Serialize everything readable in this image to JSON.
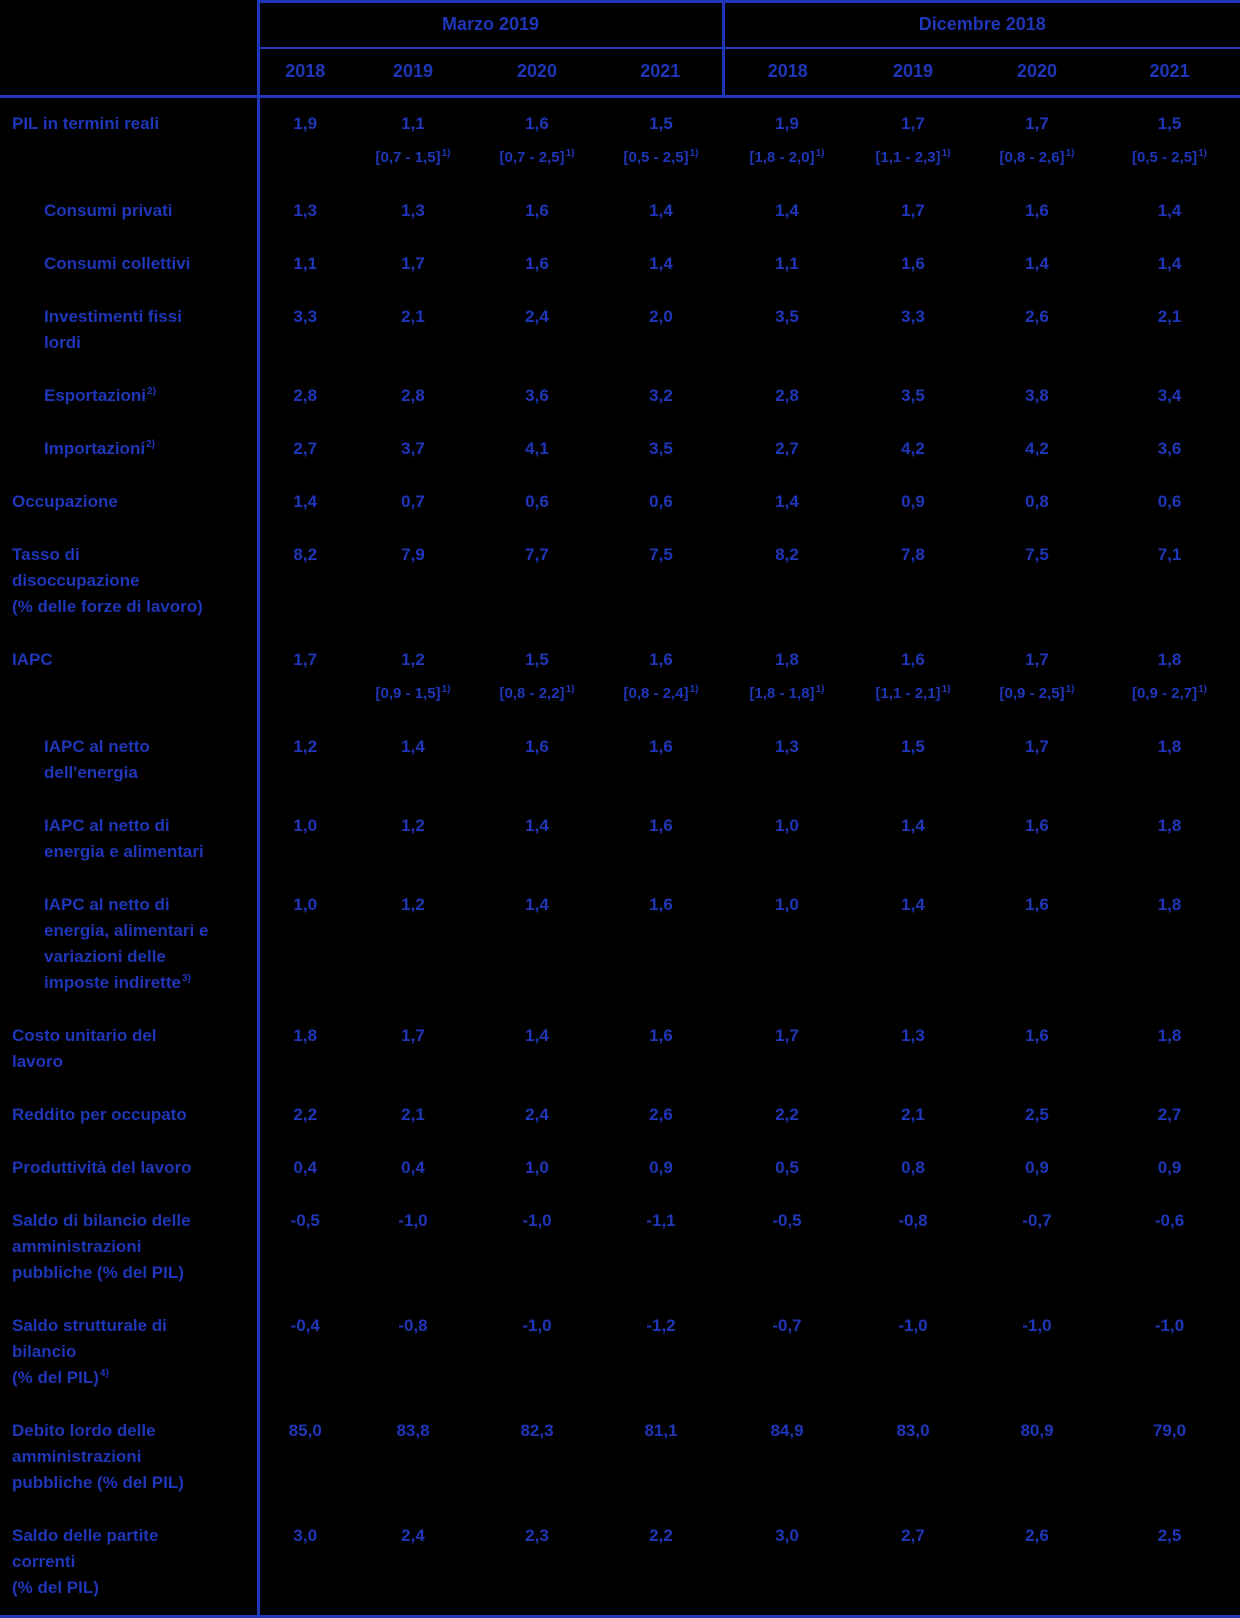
{
  "accent": "#1f36b8",
  "background": "#000000",
  "chart_data": {
    "type": "table",
    "column_groups": [
      {
        "label": "Marzo 2019",
        "years": [
          "2018",
          "2019",
          "2020",
          "2021"
        ]
      },
      {
        "label": "Dicembre 2018",
        "years": [
          "2018",
          "2019",
          "2020",
          "2021"
        ]
      }
    ],
    "rows": [
      {
        "label_lines": [
          "PIL in termini reali"
        ],
        "indent": false,
        "values": [
          "1,9",
          "1,1",
          "1,6",
          "1,5",
          "1,9",
          "1,7",
          "1,7",
          "1,5"
        ],
        "ranges": [
          "",
          "[0,7 - 1,5]",
          "[0,7 - 2,5]",
          "[0,5 - 2,5]",
          "[1,8 - 2,0]",
          "[1,1 - 2,3]",
          "[0,8 - 2,6]",
          "[0,5 - 2,5]"
        ],
        "range_sup": "1)"
      },
      {
        "label_lines": [
          "Consumi privati"
        ],
        "indent": true,
        "values": [
          "1,3",
          "1,3",
          "1,6",
          "1,4",
          "1,4",
          "1,7",
          "1,6",
          "1,4"
        ]
      },
      {
        "label_lines": [
          "Consumi collettivi"
        ],
        "indent": true,
        "values": [
          "1,1",
          "1,7",
          "1,6",
          "1,4",
          "1,1",
          "1,6",
          "1,4",
          "1,4"
        ]
      },
      {
        "label_lines": [
          "Investimenti fissi",
          "lordi"
        ],
        "indent": true,
        "values": [
          "3,3",
          "2,1",
          "2,4",
          "2,0",
          "3,5",
          "3,3",
          "2,6",
          "2,1"
        ]
      },
      {
        "label_lines": [
          "Esportazioni"
        ],
        "label_sup": "2)",
        "indent": true,
        "values": [
          "2,8",
          "2,8",
          "3,6",
          "3,2",
          "2,8",
          "3,5",
          "3,8",
          "3,4"
        ]
      },
      {
        "label_lines": [
          "Importazioni"
        ],
        "label_sup": "2)",
        "indent": true,
        "values": [
          "2,7",
          "3,7",
          "4,1",
          "3,5",
          "2,7",
          "4,2",
          "4,2",
          "3,6"
        ]
      },
      {
        "label_lines": [
          "Occupazione"
        ],
        "indent": false,
        "values": [
          "1,4",
          "0,7",
          "0,6",
          "0,6",
          "1,4",
          "0,9",
          "0,8",
          "0,6"
        ]
      },
      {
        "label_lines": [
          "Tasso di",
          "disoccupazione",
          "(% delle forze di lavoro)"
        ],
        "indent": false,
        "values": [
          "8,2",
          "7,9",
          "7,7",
          "7,5",
          "8,2",
          "7,8",
          "7,5",
          "7,1"
        ]
      },
      {
        "label_lines": [
          "IAPC"
        ],
        "indent": false,
        "values": [
          "1,7",
          "1,2",
          "1,5",
          "1,6",
          "1,8",
          "1,6",
          "1,7",
          "1,8"
        ],
        "ranges": [
          "",
          "[0,9 - 1,5]",
          "[0,8 - 2,2]",
          "[0,8 - 2,4]",
          "[1,8 - 1,8]",
          "[1,1 - 2,1]",
          "[0,9 - 2,5]",
          "[0,9 - 2,7]"
        ],
        "range_sup": "1)"
      },
      {
        "label_lines": [
          "IAPC al netto",
          "dell'energia"
        ],
        "indent": true,
        "values": [
          "1,2",
          "1,4",
          "1,6",
          "1,6",
          "1,3",
          "1,5",
          "1,7",
          "1,8"
        ]
      },
      {
        "label_lines": [
          "IAPC al netto di",
          "energia e alimentari"
        ],
        "indent": true,
        "values": [
          "1,0",
          "1,2",
          "1,4",
          "1,6",
          "1,0",
          "1,4",
          "1,6",
          "1,8"
        ]
      },
      {
        "label_lines": [
          "IAPC al netto di",
          "energia, alimentari e",
          "variazioni delle",
          "imposte indirette"
        ],
        "label_sup": "3)",
        "indent": true,
        "values": [
          "1,0",
          "1,2",
          "1,4",
          "1,6",
          "1,0",
          "1,4",
          "1,6",
          "1,8"
        ]
      },
      {
        "label_lines": [
          "Costo unitario del",
          "lavoro"
        ],
        "indent": false,
        "values": [
          "1,8",
          "1,7",
          "1,4",
          "1,6",
          "1,7",
          "1,3",
          "1,6",
          "1,8"
        ]
      },
      {
        "label_lines": [
          "Reddito per occupato"
        ],
        "indent": false,
        "values": [
          "2,2",
          "2,1",
          "2,4",
          "2,6",
          "2,2",
          "2,1",
          "2,5",
          "2,7"
        ]
      },
      {
        "label_lines": [
          "Produttività del lavoro"
        ],
        "indent": false,
        "values": [
          "0,4",
          "0,4",
          "1,0",
          "0,9",
          "0,5",
          "0,8",
          "0,9",
          "0,9"
        ]
      },
      {
        "label_lines": [
          "Saldo di bilancio delle",
          "amministrazioni",
          "pubbliche (% del PIL)"
        ],
        "indent": false,
        "values": [
          "-0,5",
          "-1,0",
          "-1,0",
          "-1,1",
          "-0,5",
          "-0,8",
          "-0,7",
          "-0,6"
        ]
      },
      {
        "label_lines": [
          "Saldo strutturale di",
          "bilancio",
          "(% del PIL)"
        ],
        "label_sup": "4)",
        "indent": false,
        "values": [
          "-0,4",
          "-0,8",
          "-1,0",
          "-1,2",
          "-0,7",
          "-1,0",
          "-1,0",
          "-1,0"
        ]
      },
      {
        "label_lines": [
          "Debito lordo delle",
          "amministrazioni",
          "pubbliche (% del PIL)"
        ],
        "indent": false,
        "values": [
          "85,0",
          "83,8",
          "82,3",
          "81,1",
          "84,9",
          "83,0",
          "80,9",
          "79,0"
        ]
      },
      {
        "label_lines": [
          "Saldo delle partite",
          "correnti",
          "(% del PIL)"
        ],
        "indent": false,
        "values": [
          "3,0",
          "2,4",
          "2,3",
          "2,2",
          "3,0",
          "2,7",
          "2,6",
          "2,5"
        ]
      }
    ]
  }
}
